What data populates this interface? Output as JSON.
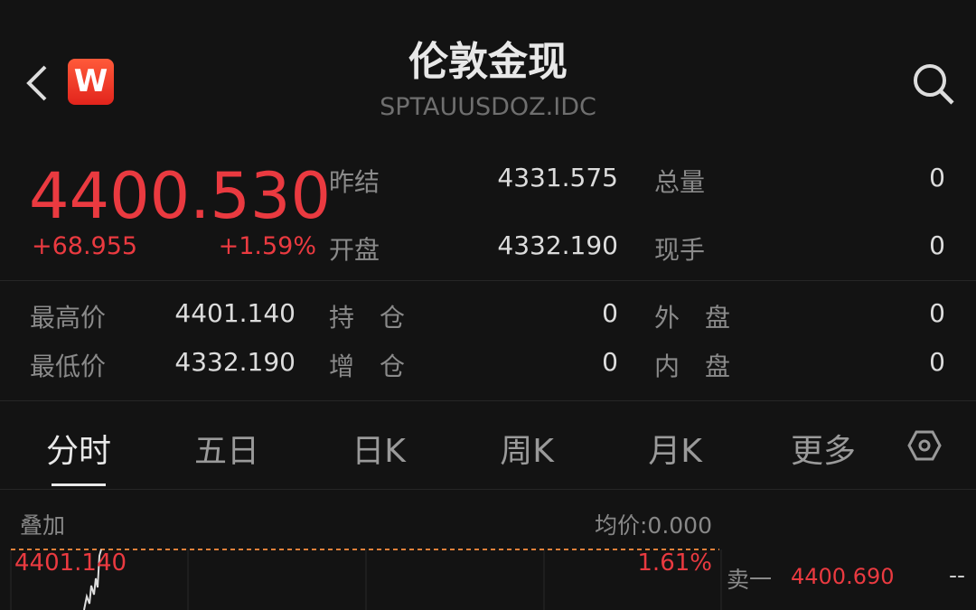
{
  "header": {
    "title": "伦敦金现",
    "code": "SPTAUUSDOZ.IDC",
    "logo_text": "W"
  },
  "quote": {
    "price": "4400.530",
    "change": "+68.955",
    "change_pct": "+1.59%"
  },
  "stats": [
    {
      "label": "昨结",
      "value": "4331.575"
    },
    {
      "label": "总量",
      "value": "0"
    },
    {
      "label": "开盘",
      "value": "4332.190"
    },
    {
      "label": "现手",
      "value": "0"
    },
    {
      "label": "最高价",
      "value": "4401.140"
    },
    {
      "label": "持　仓",
      "value": "0"
    },
    {
      "label": "外　盘",
      "value": "0"
    },
    {
      "label": "最低价",
      "value": "4332.190"
    },
    {
      "label": "增　仓",
      "value": "0"
    },
    {
      "label": "内　盘",
      "value": "0"
    }
  ],
  "tabs": [
    {
      "label": "分时"
    },
    {
      "label": "五日"
    },
    {
      "label": "日K"
    },
    {
      "label": "周K"
    },
    {
      "label": "月K"
    },
    {
      "label": "更多"
    }
  ],
  "chart": {
    "overlay_label": "叠加",
    "avg_price": "均价:0.000",
    "high_label": "4401.140",
    "high_pct": "1.61%"
  },
  "orderbook": {
    "ask1_label": "卖一",
    "ask1_price": "4400.690",
    "ask1_volume": "--"
  },
  "colors": {
    "up": "#ea3a40",
    "background": "#131313",
    "dash": "#e0803a"
  }
}
